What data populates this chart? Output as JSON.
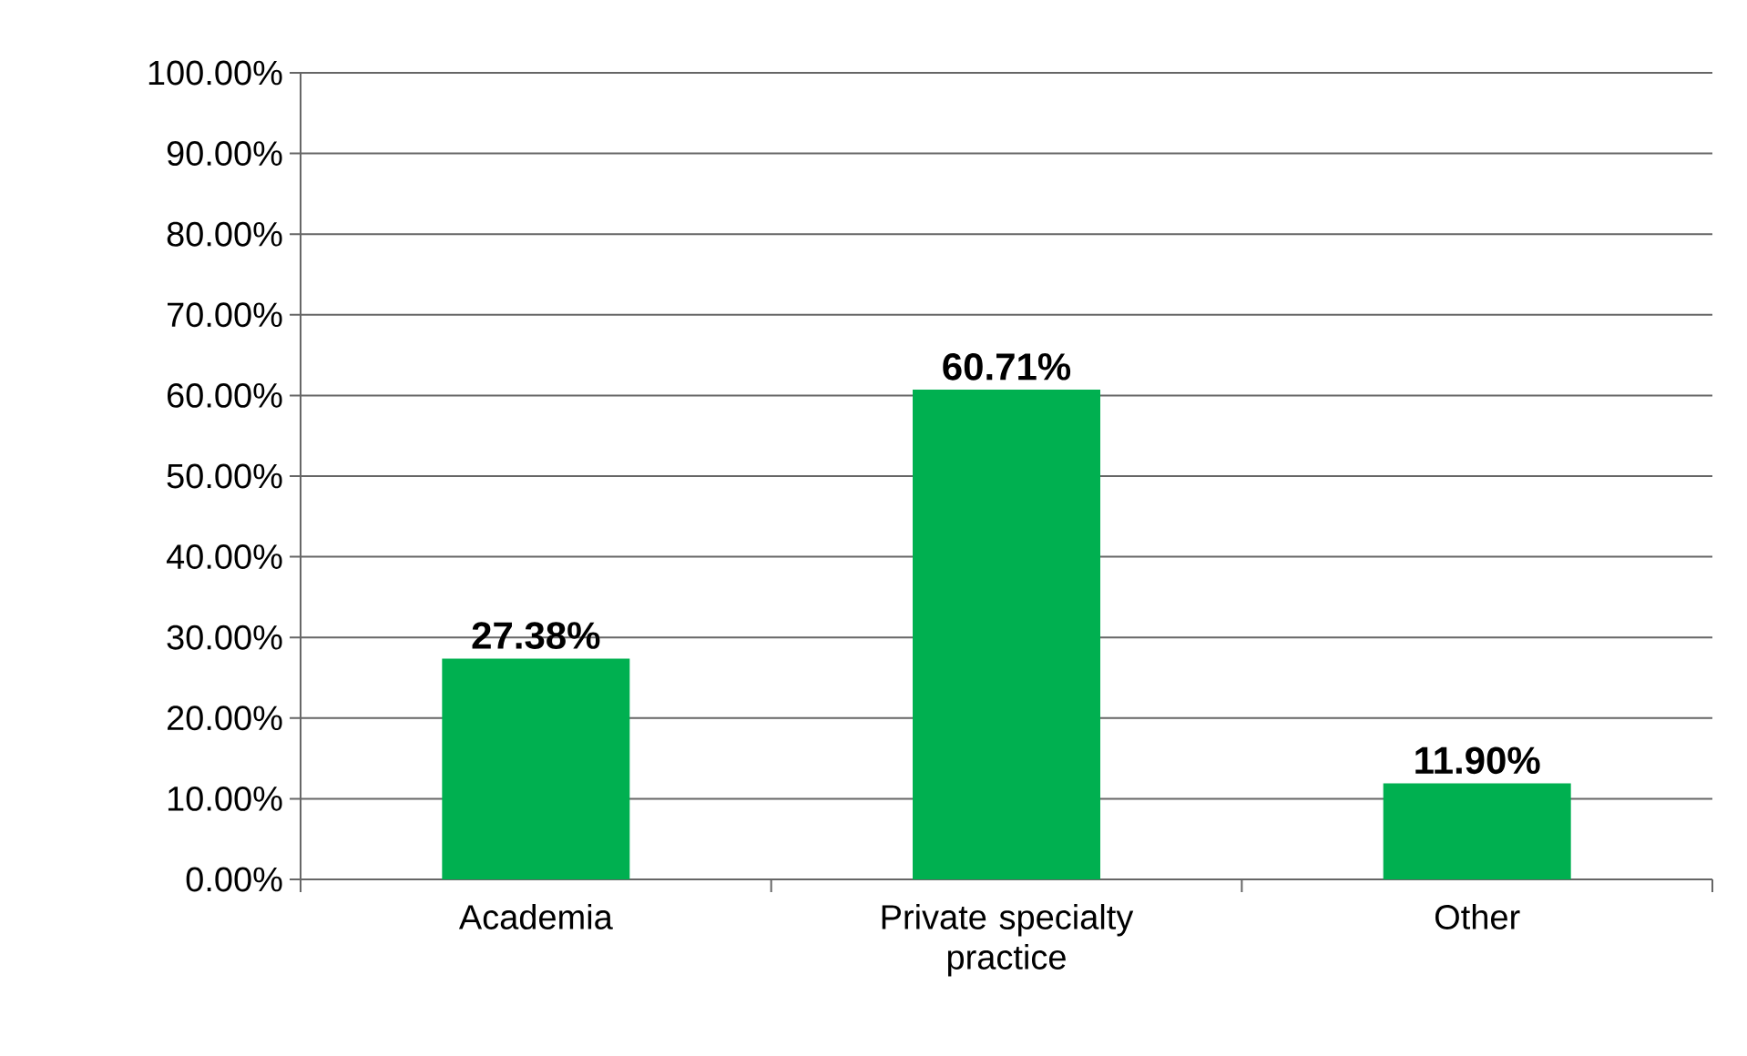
{
  "chart_data": {
    "type": "bar",
    "categories": [
      "Academia",
      "Private specialty practice",
      "Other"
    ],
    "values": [
      27.38,
      60.71,
      11.9
    ],
    "value_labels": [
      "27.38%",
      "60.71%",
      "11.90%"
    ],
    "color": "#00b050",
    "ylim": [
      0,
      100
    ],
    "yticks": [
      {
        "value": 0,
        "label": "0.00%"
      },
      {
        "value": 10,
        "label": "10.00%"
      },
      {
        "value": 20,
        "label": "20.00%"
      },
      {
        "value": 30,
        "label": "30.00%"
      },
      {
        "value": 40,
        "label": "40.00%"
      },
      {
        "value": 50,
        "label": "50.00%"
      },
      {
        "value": 60,
        "label": "60.00%"
      },
      {
        "value": 70,
        "label": "70.00%"
      },
      {
        "value": 80,
        "label": "80.00%"
      },
      {
        "value": 90,
        "label": "90.00%"
      },
      {
        "value": 100,
        "label": "100.00%"
      }
    ],
    "grid": "y"
  }
}
